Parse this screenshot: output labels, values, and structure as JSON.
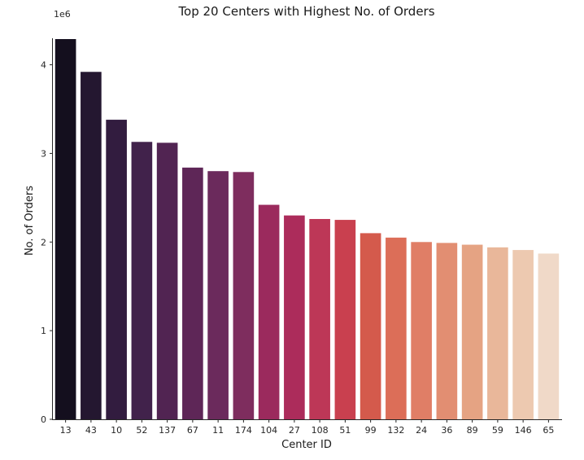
{
  "chart_data": {
    "type": "bar",
    "title": "Top 20 Centers with Highest No. of Orders",
    "xlabel": "Center ID",
    "ylabel": "No. of Orders",
    "y_offset_label": "1e6",
    "categories": [
      "13",
      "43",
      "10",
      "52",
      "137",
      "67",
      "11",
      "174",
      "104",
      "27",
      "108",
      "51",
      "99",
      "132",
      "24",
      "36",
      "89",
      "59",
      "146",
      "65"
    ],
    "values": [
      4290000,
      3920000,
      3380000,
      3130000,
      3120000,
      2840000,
      2800000,
      2790000,
      2420000,
      2300000,
      2260000,
      2250000,
      2100000,
      2050000,
      2000000,
      1990000,
      1970000,
      1940000,
      1910000,
      1870000
    ],
    "colors": [
      "#140f1e",
      "#241730",
      "#321c3f",
      "#41224b",
      "#512452",
      "#5e2657",
      "#6b2a5c",
      "#7e2d5e",
      "#9b2a5d",
      "#ac2c5b",
      "#bd3757",
      "#c9404f",
      "#d45a4c",
      "#dc6e58",
      "#e07e66",
      "#e28e72",
      "#e5a383",
      "#e9b79a",
      "#edc9b0",
      "#f0d9c8"
    ],
    "y_ticks": [
      "0",
      "1",
      "2",
      "3",
      "4"
    ],
    "ylim": [
      0,
      4290000
    ],
    "grid": false,
    "legend": "none"
  }
}
